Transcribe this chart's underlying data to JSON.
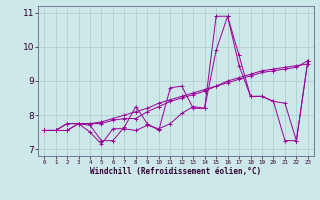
{
  "background_color": "#cce8e8",
  "grid_color": "#aacccc",
  "line_color": "#990099",
  "xlim": [
    -0.5,
    23.5
  ],
  "ylim": [
    6.8,
    11.2
  ],
  "yticks": [
    7,
    8,
    9,
    10,
    11
  ],
  "xticks": [
    0,
    1,
    2,
    3,
    4,
    5,
    6,
    7,
    8,
    9,
    10,
    11,
    12,
    13,
    14,
    15,
    16,
    17,
    18,
    19,
    20,
    21,
    22,
    23
  ],
  "xlabel": "Windchill (Refroidissement éolien,°C)",
  "curves": [
    [
      7.55,
      7.55,
      7.55,
      7.75,
      7.7,
      7.25,
      7.25,
      7.65,
      8.25,
      7.75,
      7.55,
      8.8,
      8.85,
      8.2,
      8.2,
      10.9,
      10.9,
      9.75,
      8.55,
      8.55,
      8.4,
      8.35,
      7.25,
      9.6
    ],
    [
      7.55,
      7.55,
      7.55,
      7.75,
      7.5,
      7.15,
      7.6,
      7.6,
      7.55,
      7.7,
      7.6,
      7.75,
      8.05,
      8.25,
      8.2,
      9.9,
      10.9,
      9.45,
      8.55,
      8.55,
      8.4,
      7.25,
      7.25,
      9.6
    ],
    [
      7.55,
      7.55,
      7.75,
      7.75,
      7.75,
      7.75,
      7.85,
      7.9,
      7.9,
      8.1,
      8.25,
      8.4,
      8.5,
      8.6,
      8.7,
      8.85,
      9.0,
      9.1,
      9.2,
      9.3,
      9.35,
      9.4,
      9.45,
      9.5
    ],
    [
      7.55,
      7.55,
      7.75,
      7.75,
      7.75,
      7.8,
      7.9,
      8.0,
      8.1,
      8.2,
      8.35,
      8.45,
      8.55,
      8.65,
      8.75,
      8.85,
      8.95,
      9.05,
      9.15,
      9.25,
      9.3,
      9.35,
      9.4,
      9.6
    ]
  ]
}
